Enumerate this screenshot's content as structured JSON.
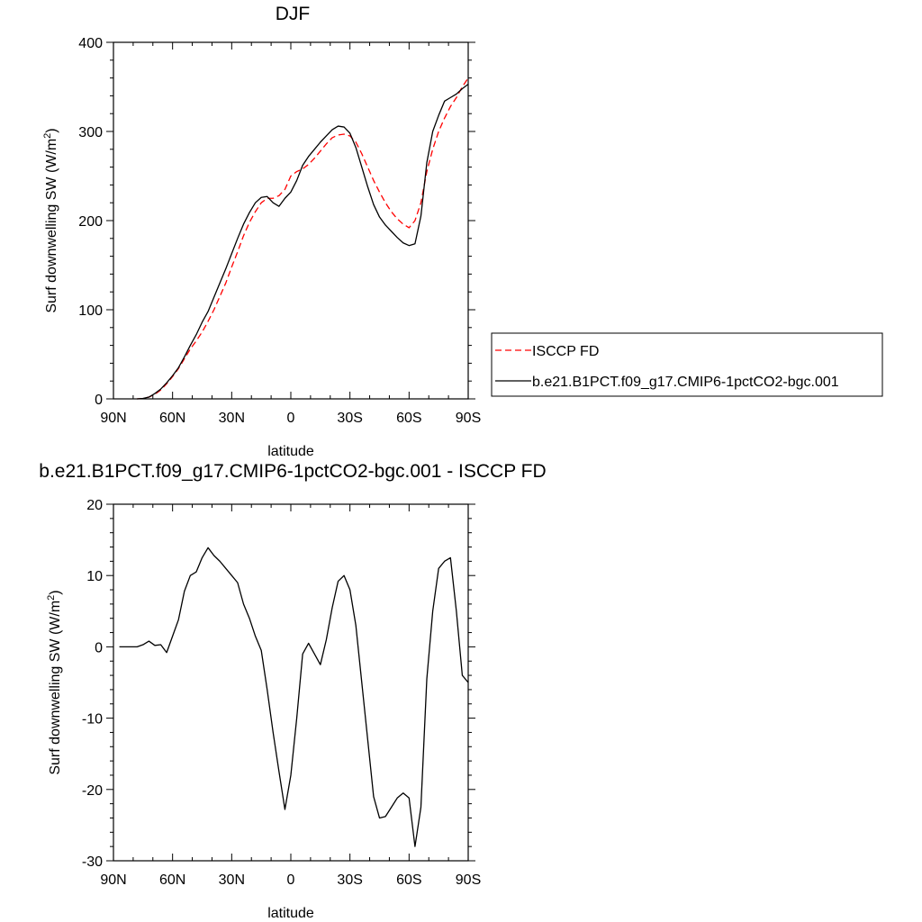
{
  "chart_data": [
    {
      "type": "line",
      "title": "DJF",
      "xlabel": "latitude",
      "ylabel_text": "Surf downwelling SW (W/m",
      "ylabel_sup": "2",
      "ylabel_close": ")",
      "xlim": [
        -90,
        90
      ],
      "ylim": [
        0,
        400
      ],
      "x_ticks": [
        -90,
        -60,
        -30,
        0,
        30,
        60,
        90
      ],
      "x_tick_labels": [
        "90N",
        "60N",
        "30N",
        "0",
        "30S",
        "60S",
        "90S"
      ],
      "y_ticks": [
        0,
        100,
        200,
        300,
        400
      ],
      "y_tick_labels": [
        "0",
        "100",
        "200",
        "300",
        "400"
      ],
      "legend_position": "right",
      "series": [
        {
          "name": "ISCCP FD",
          "color": "#ff0000",
          "dash": "dashed",
          "x": [
            -78,
            -75,
            -72,
            -69,
            -66,
            -63,
            -60,
            -57,
            -54,
            -51,
            -48,
            -45,
            -42,
            -39,
            -36,
            -33,
            -30,
            -27,
            -24,
            -21,
            -18,
            -15,
            -12,
            -9,
            -6,
            -3,
            0,
            3,
            6,
            9,
            12,
            15,
            18,
            21,
            24,
            27,
            30,
            33,
            36,
            39,
            42,
            45,
            48,
            51,
            54,
            57,
            60,
            63,
            66,
            69,
            72,
            75,
            78,
            81,
            84,
            87,
            90
          ],
          "y": [
            0,
            0.5,
            2,
            5,
            10,
            17,
            25,
            34,
            45,
            56,
            65,
            75,
            87,
            100,
            115,
            130,
            148,
            165,
            183,
            198,
            210,
            220,
            225,
            225,
            228,
            235,
            250,
            255,
            258,
            263,
            270,
            278,
            286,
            293,
            296,
            297,
            295,
            288,
            275,
            260,
            245,
            232,
            220,
            210,
            202,
            196,
            192,
            200,
            220,
            255,
            280,
            300,
            315,
            328,
            338,
            350,
            360
          ]
        },
        {
          "name": "b.e21.B1PCT.f09_g17.CMIP6-1pctCO2-bgc.001",
          "color": "#000000",
          "dash": "solid",
          "x": [
            -78,
            -75,
            -72,
            -69,
            -66,
            -63,
            -60,
            -57,
            -54,
            -51,
            -48,
            -45,
            -42,
            -39,
            -36,
            -33,
            -30,
            -27,
            -24,
            -21,
            -18,
            -15,
            -12,
            -9,
            -6,
            -3,
            0,
            3,
            6,
            9,
            12,
            15,
            18,
            21,
            24,
            27,
            30,
            33,
            36,
            39,
            42,
            45,
            48,
            51,
            54,
            57,
            60,
            63,
            66,
            69,
            72,
            75,
            78,
            81,
            84,
            87,
            90
          ],
          "y": [
            0,
            0.5,
            2,
            6,
            11,
            18,
            26,
            35,
            47,
            60,
            72,
            86,
            98,
            114,
            130,
            146,
            163,
            180,
            196,
            209,
            220,
            226,
            227,
            220,
            216,
            225,
            232,
            245,
            262,
            272,
            280,
            288,
            295,
            302,
            306,
            305,
            298,
            282,
            260,
            238,
            218,
            204,
            195,
            188,
            181,
            175,
            172,
            174,
            205,
            265,
            300,
            318,
            334,
            338,
            342,
            348,
            353
          ]
        }
      ]
    },
    {
      "type": "line",
      "title": "b.e21.B1PCT.f09_g17.CMIP6-1pctCO2-bgc.001 - ISCCP FD",
      "xlabel": "latitude",
      "ylabel_text": "Surf downwelling SW (W/m",
      "ylabel_sup": "2",
      "ylabel_close": ")",
      "xlim": [
        -90,
        90
      ],
      "ylim": [
        -30,
        20
      ],
      "x_ticks": [
        -90,
        -60,
        -30,
        0,
        30,
        60,
        90
      ],
      "x_tick_labels": [
        "90N",
        "60N",
        "30N",
        "0",
        "30S",
        "60S",
        "90S"
      ],
      "y_ticks": [
        -30,
        -20,
        -10,
        0,
        10,
        20
      ],
      "y_tick_labels": [
        "-30",
        "-20",
        "-10",
        "0",
        "10",
        "20"
      ],
      "series": [
        {
          "color": "#000000",
          "dash": "solid",
          "x": [
            -87,
            -82,
            -78,
            -75,
            -72,
            -69,
            -66,
            -63,
            -60,
            -57,
            -54,
            -51,
            -48,
            -45,
            -42,
            -39,
            -36,
            -33,
            -30,
            -27,
            -24,
            -21,
            -18,
            -15,
            -12,
            -9,
            -6,
            -3,
            0,
            3,
            6,
            9,
            12,
            15,
            18,
            21,
            24,
            27,
            30,
            33,
            36,
            39,
            42,
            45,
            48,
            51,
            54,
            57,
            60,
            63,
            66,
            69,
            72,
            75,
            78,
            81,
            84,
            87,
            90
          ],
          "y": [
            0,
            0,
            0,
            0.3,
            0.8,
            0.2,
            0.3,
            -0.8,
            1.5,
            3.8,
            7.8,
            10,
            10.5,
            12.5,
            13.9,
            12.8,
            12,
            11,
            10,
            9,
            6,
            4,
            1.5,
            -0.5,
            -6,
            -12,
            -17.5,
            -22.8,
            -18,
            -10,
            -1,
            0.5,
            -1,
            -2.5,
            1,
            5.5,
            9.2,
            10,
            8,
            3,
            -5,
            -13,
            -21,
            -24,
            -23.8,
            -22.5,
            -21.2,
            -20.5,
            -21.2,
            -28,
            -22.5,
            -4.5,
            5,
            11,
            12,
            12.5,
            5,
            -4,
            -5
          ]
        }
      ]
    }
  ]
}
